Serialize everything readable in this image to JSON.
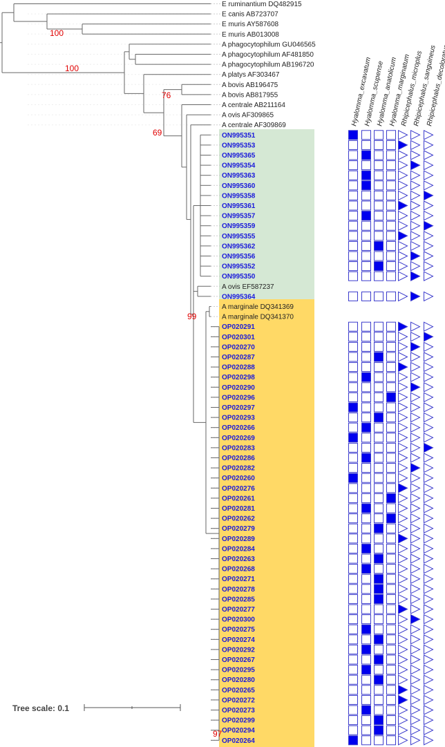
{
  "figure": {
    "scale_label": "Tree scale: 0.1",
    "colors": {
      "branch": "#666666",
      "guide": "#cccccc",
      "seq_label": "#1a1adb",
      "ref_label": "#222222",
      "bootstrap": "#e00000",
      "clade_green": "#d5e8d4",
      "clade_yellow": "#ffd966",
      "marker_fill": "#0000ee",
      "marker_stroke": "#3a3acc"
    }
  },
  "bootstrap_labels": [
    "100",
    "100",
    "76",
    "69",
    "99",
    "97"
  ],
  "column_headers": [
    {
      "label": "Hyalomma_excavatum",
      "shape": "square"
    },
    {
      "label": "Hyalomma_scupense",
      "shape": "square"
    },
    {
      "label": "Hyalomma_anatolicum",
      "shape": "square"
    },
    {
      "label": "Hyalomma_marginatum",
      "shape": "square"
    },
    {
      "label": "Rhipicephalus_microplus",
      "shape": "triangle"
    },
    {
      "label": "Rhipicephalus_sanguineus",
      "shape": "triangle"
    },
    {
      "label": "Rhipicephalus_decoloratus",
      "shape": "triangle"
    }
  ],
  "leaves": [
    {
      "label": "E ruminantium DQ482915",
      "type": "ref",
      "host": null
    },
    {
      "label": "E canis AB723707",
      "type": "ref",
      "host": null
    },
    {
      "label": "E muris AY587608",
      "type": "ref",
      "host": null
    },
    {
      "label": "E muris AB013008",
      "type": "ref",
      "host": null
    },
    {
      "label": "A phagocytophilum GU046565",
      "type": "ref",
      "host": null
    },
    {
      "label": "A phagocytophilum AF481850",
      "type": "ref",
      "host": null
    },
    {
      "label": "A phagocytophilum AB196720",
      "type": "ref",
      "host": null
    },
    {
      "label": "A platys AF303467",
      "type": "ref",
      "host": null
    },
    {
      "label": "A bovis AB196475",
      "type": "ref",
      "host": null
    },
    {
      "label": "A bovis AB817955",
      "type": "ref",
      "host": null
    },
    {
      "label": "A centrale AB211164",
      "type": "ref",
      "host": null
    },
    {
      "label": "A ovis AF309865",
      "type": "ref",
      "host": null
    },
    {
      "label": "A centrale AF309869",
      "type": "ref",
      "host": null
    },
    {
      "label": "ON995351",
      "type": "seq",
      "host": 0
    },
    {
      "label": "ON995353",
      "type": "seq",
      "host": 4
    },
    {
      "label": "ON995365",
      "type": "seq",
      "host": 1
    },
    {
      "label": "ON995354",
      "type": "seq",
      "host": 5
    },
    {
      "label": "ON995363",
      "type": "seq",
      "host": 1
    },
    {
      "label": "ON995360",
      "type": "seq",
      "host": 1
    },
    {
      "label": "ON995358",
      "type": "seq",
      "host": 6
    },
    {
      "label": "ON995361",
      "type": "seq",
      "host": 4
    },
    {
      "label": "ON995357",
      "type": "seq",
      "host": 1
    },
    {
      "label": "ON995359",
      "type": "seq",
      "host": 6
    },
    {
      "label": "ON995355",
      "type": "seq",
      "host": 4
    },
    {
      "label": "ON995362",
      "type": "seq",
      "host": 2
    },
    {
      "label": "ON995356",
      "type": "seq",
      "host": 5
    },
    {
      "label": "ON995352",
      "type": "seq",
      "host": 2
    },
    {
      "label": "ON995350",
      "type": "seq",
      "host": 5
    },
    {
      "label": "A ovis EF587237",
      "type": "ref",
      "host": null
    },
    {
      "label": "ON995364",
      "type": "seq",
      "host": 5
    },
    {
      "label": "A marginale DQ341369",
      "type": "ref",
      "host": null
    },
    {
      "label": "A marginale DQ341370",
      "type": "ref",
      "host": null
    },
    {
      "label": "OP020291",
      "type": "seq",
      "host": 4
    },
    {
      "label": "OP020301",
      "type": "seq",
      "host": 6
    },
    {
      "label": "OP020270",
      "type": "seq",
      "host": 5
    },
    {
      "label": "OP020287",
      "type": "seq",
      "host": 2
    },
    {
      "label": "OP020288",
      "type": "seq",
      "host": 4
    },
    {
      "label": "OP020298",
      "type": "seq",
      "host": 1
    },
    {
      "label": "OP020290",
      "type": "seq",
      "host": 5
    },
    {
      "label": "OP020296",
      "type": "seq",
      "host": 3
    },
    {
      "label": "OP020297",
      "type": "seq",
      "host": 0
    },
    {
      "label": "OP020293",
      "type": "seq",
      "host": 2
    },
    {
      "label": "OP020266",
      "type": "seq",
      "host": 1
    },
    {
      "label": "OP020269",
      "type": "seq",
      "host": 0
    },
    {
      "label": "OP020283",
      "type": "seq",
      "host": 6
    },
    {
      "label": "OP020286",
      "type": "seq",
      "host": 1
    },
    {
      "label": "OP020282",
      "type": "seq",
      "host": 5
    },
    {
      "label": "OP020260",
      "type": "seq",
      "host": 0
    },
    {
      "label": "OP020276",
      "type": "seq",
      "host": 4
    },
    {
      "label": "OP020261",
      "type": "seq",
      "host": 3
    },
    {
      "label": "OP020281",
      "type": "seq",
      "host": 1
    },
    {
      "label": "OP020262",
      "type": "seq",
      "host": 3
    },
    {
      "label": "OP020279",
      "type": "seq",
      "host": 2
    },
    {
      "label": "OP020289",
      "type": "seq",
      "host": 4
    },
    {
      "label": "OP020284",
      "type": "seq",
      "host": 1
    },
    {
      "label": "OP020263",
      "type": "seq",
      "host": 2
    },
    {
      "label": "OP020268",
      "type": "seq",
      "host": 1
    },
    {
      "label": "OP020271",
      "type": "seq",
      "host": 2
    },
    {
      "label": "OP020278",
      "type": "seq",
      "host": 2
    },
    {
      "label": "OP020285",
      "type": "seq",
      "host": 2
    },
    {
      "label": "OP020277",
      "type": "seq",
      "host": 4
    },
    {
      "label": "OP020300",
      "type": "seq",
      "host": 5
    },
    {
      "label": "OP020275",
      "type": "seq",
      "host": 1
    },
    {
      "label": "OP020274",
      "type": "seq",
      "host": 2
    },
    {
      "label": "OP020292",
      "type": "seq",
      "host": 1
    },
    {
      "label": "OP020267",
      "type": "seq",
      "host": 2
    },
    {
      "label": "OP020295",
      "type": "seq",
      "host": 1
    },
    {
      "label": "OP020280",
      "type": "seq",
      "host": 2
    },
    {
      "label": "OP020265",
      "type": "seq",
      "host": 4
    },
    {
      "label": "OP020272",
      "type": "seq",
      "host": 4
    },
    {
      "label": "OP020273",
      "type": "seq",
      "host": 1
    },
    {
      "label": "OP020299",
      "type": "seq",
      "host": 2
    },
    {
      "label": "OP020294",
      "type": "seq",
      "host": 2
    },
    {
      "label": "OP020264",
      "type": "seq",
      "host": 0
    }
  ]
}
